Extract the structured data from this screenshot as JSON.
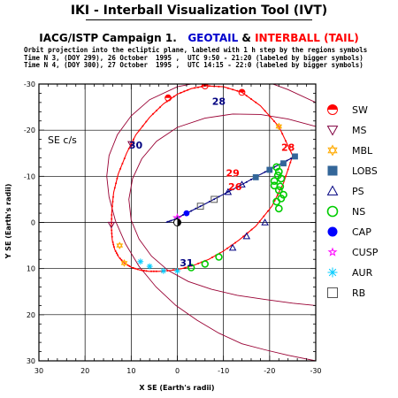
{
  "header": {
    "title": "IKI - Interball Visualization Tool (IVT)",
    "campaign": "IACG/ISTP Campaign 1.",
    "geotail": "GEOTAIL",
    "amp": "&",
    "interball": "INTERBALL (TAIL)",
    "note_line1": "Orbit projection into the ecliptic plane, labeled with 1 h step by the regions symbols",
    "note_line2": "Time N 3, (DOY 299), 26 October  1995 ,  UTC 9:50 - 21:20 (labeled by bigger symbols)",
    "note_line3": "Time N 4, (DOY 300), 27 October  1995 ,  UTC 14:15 - 22:0 (labeled by bigger symbols)"
  },
  "colors": {
    "geotail": "#0000cc",
    "interball": "#ff0000",
    "boundary": "#990033",
    "sw": "#ff0000",
    "ms": "#800040",
    "mbl": "#ffaa00",
    "lobs": "#336699",
    "ps": "#000080",
    "ns": "#00cc00",
    "cap": "#0000ff",
    "cusp": "#ff00ff",
    "aur": "#00ccff",
    "rb": "#555555"
  },
  "chart_data": {
    "type": "scatter",
    "coordinate_system_label": "SE c/s",
    "xlabel": "X SE (Earth's radii)",
    "ylabel": "Y SE (Earth's radii)",
    "xlim": [
      30,
      -30
    ],
    "ylim": [
      -30,
      30
    ],
    "x_ticks": [
      "30",
      "20",
      "10",
      "0",
      "-10",
      "-20",
      "-30"
    ],
    "y_ticks": [
      "-30",
      "-20",
      "-10",
      "0",
      "10",
      "20",
      "30"
    ],
    "grid": true,
    "legend_position": "right",
    "legend": [
      {
        "label": "SW",
        "symbol": "sw-half-circle",
        "color": "#ff0000"
      },
      {
        "label": "MS",
        "symbol": "triangle-down",
        "color": "#800040"
      },
      {
        "label": "MBL",
        "symbol": "star-of-david",
        "color": "#ffaa00"
      },
      {
        "label": "LOBS",
        "symbol": "square-half",
        "color": "#336699"
      },
      {
        "label": "PS",
        "symbol": "triangle-up",
        "color": "#000080"
      },
      {
        "label": "NS",
        "symbol": "circle",
        "color": "#00cc00"
      },
      {
        "label": "CAP",
        "symbol": "filled-hexagon",
        "color": "#0000ff"
      },
      {
        "label": "CUSP",
        "symbol": "star",
        "color": "#ff00ff"
      },
      {
        "label": "AUR",
        "symbol": "asterisk",
        "color": "#00ccff"
      },
      {
        "label": "RB",
        "symbol": "square",
        "color": "#555555"
      }
    ],
    "annotations": [
      {
        "text": "28",
        "x": -9,
        "y": -25.5,
        "color": "#000080"
      },
      {
        "text": "30",
        "x": 9,
        "y": -16,
        "color": "#000080"
      },
      {
        "text": "28",
        "x": -24,
        "y": -15.5,
        "color": "#ff0000"
      },
      {
        "text": "29",
        "x": -12,
        "y": -10,
        "color": "#ff0000"
      },
      {
        "text": "26",
        "x": -12.5,
        "y": -7,
        "color": "#ff0000"
      },
      {
        "text": "31",
        "x": -2,
        "y": 9.5,
        "color": "#000080"
      }
    ],
    "series": [
      {
        "name": "INTERBALL (TAIL)",
        "color": "#ff0000",
        "x": [
          -25,
          -22,
          -18,
          -14,
          -10,
          -6,
          -3,
          0,
          3,
          6,
          9,
          11,
          12.8,
          13.8,
          14.2,
          14.3,
          14.1,
          13.6,
          12.7,
          11.5,
          10,
          8.2,
          6.2,
          4,
          1.5,
          -1,
          -3.8,
          -6.8,
          -10,
          -13.4,
          -17,
          -20.5,
          -23,
          -25
        ],
        "y": [
          -14.5,
          -20.8,
          -25.3,
          -28.2,
          -29.4,
          -29.6,
          -29,
          -27.8,
          -25.7,
          -22.8,
          -19,
          -15,
          -10.5,
          -6.5,
          -2.5,
          1,
          3.8,
          5.8,
          7.5,
          8.8,
          9.7,
          10.3,
          10.6,
          10.6,
          10.4,
          10,
          9.2,
          8,
          6.2,
          3.8,
          0.8,
          -3.5,
          -8.5,
          -14.5
        ],
        "labeled_points": [
          {
            "x": 14.3,
            "y": 0.5,
            "region": "MS"
          },
          {
            "x": 10,
            "y": -17,
            "region": "MS"
          },
          {
            "x": 2,
            "y": -27,
            "region": "SW"
          },
          {
            "x": -6,
            "y": -29.6,
            "region": "SW"
          },
          {
            "x": -14,
            "y": -28.2,
            "region": "SW"
          },
          {
            "x": -22,
            "y": -20.8,
            "region": "MBL"
          },
          {
            "x": 12.5,
            "y": 5,
            "region": "MBL"
          },
          {
            "x": 11.5,
            "y": 8.8,
            "region": "MBL"
          },
          {
            "x": 8,
            "y": 8.5,
            "region": "AUR"
          },
          {
            "x": 6,
            "y": 9.5,
            "region": "AUR"
          },
          {
            "x": 3,
            "y": 10.5,
            "region": "AUR"
          },
          {
            "x": 0,
            "y": 10.5,
            "region": "AUR"
          },
          {
            "x": -3,
            "y": 9.8,
            "region": "NS"
          },
          {
            "x": -6,
            "y": 9,
            "region": "NS"
          },
          {
            "x": -9,
            "y": 7.5,
            "region": "NS"
          },
          {
            "x": -12,
            "y": 5.5,
            "region": "PS"
          },
          {
            "x": -15,
            "y": 3,
            "region": "PS"
          },
          {
            "x": -19,
            "y": 0,
            "region": "PS"
          }
        ]
      },
      {
        "name": "GEOTAIL",
        "color": "#000080",
        "x": [
          -25.5,
          -22,
          -18,
          -14,
          -10,
          -6,
          -2,
          1,
          2.5
        ],
        "y": [
          -14.3,
          -12.5,
          -10.4,
          -8.2,
          -6.1,
          -4,
          -2,
          -0.5,
          0
        ],
        "labeled_points": [
          {
            "x": -25.5,
            "y": -14.3,
            "region": "LOBS"
          },
          {
            "x": -23,
            "y": -12.8,
            "region": "LOBS"
          },
          {
            "x": -20,
            "y": -11.4,
            "region": "LOBS"
          },
          {
            "x": -17,
            "y": -9.8,
            "region": "LOBS"
          },
          {
            "x": -14,
            "y": -8.2,
            "region": "PS"
          },
          {
            "x": -11,
            "y": -6.6,
            "region": "PS"
          },
          {
            "x": -8,
            "y": -5,
            "region": "RB"
          },
          {
            "x": -5,
            "y": -3.5,
            "region": "RB"
          },
          {
            "x": -2,
            "y": -2,
            "region": "CAP"
          },
          {
            "x": 0,
            "y": -1,
            "region": "CUSP"
          }
        ]
      },
      {
        "name": "NS cluster",
        "color": "#00cc00",
        "x": [
          -21.5,
          -22,
          -22.5,
          -21,
          -22,
          -23,
          -21.5,
          -22,
          -21,
          -22.5,
          -21.8,
          -22.3
        ],
        "y": [
          -12,
          -11,
          -9.5,
          -8,
          -7,
          -6,
          -4.5,
          -3,
          -9,
          -5.2,
          -10.2,
          -7.8
        ]
      }
    ],
    "model_boundaries": [
      {
        "name": "bow-shock",
        "color": "#990033",
        "x": [
          -30,
          -24,
          -18,
          -12,
          -6,
          0,
          6,
          10,
          13,
          14.8,
          15.3,
          14.8,
          13.4,
          11.2,
          8.3,
          4.6,
          0.3,
          -4.3,
          -9,
          -14,
          -19,
          -24,
          -30
        ],
        "y": [
          -26,
          -28.8,
          -31,
          -31,
          -30.6,
          -29.4,
          -26.6,
          -23.1,
          -19,
          -14.5,
          -10,
          -5.5,
          -0.3,
          4.7,
          9.5,
          14,
          18,
          21.2,
          24,
          26.3,
          27.6,
          28.8,
          30
        ]
      },
      {
        "name": "magnetopause",
        "color": "#990033",
        "x": [
          -30,
          -24,
          -18,
          -12,
          -6,
          0,
          4.5,
          7.7,
          9.7,
          10.5,
          10,
          8.3,
          5.6,
          2,
          -2.4,
          -7.4,
          -13,
          -19,
          -25,
          -30
        ],
        "y": [
          -20.8,
          -22.4,
          -23.4,
          -23.5,
          -22.6,
          -20.6,
          -17.6,
          -13.8,
          -9.5,
          -5,
          -0.5,
          3.6,
          7.3,
          10.4,
          12.8,
          14.5,
          15.8,
          16.7,
          17.5,
          18
        ]
      }
    ]
  }
}
